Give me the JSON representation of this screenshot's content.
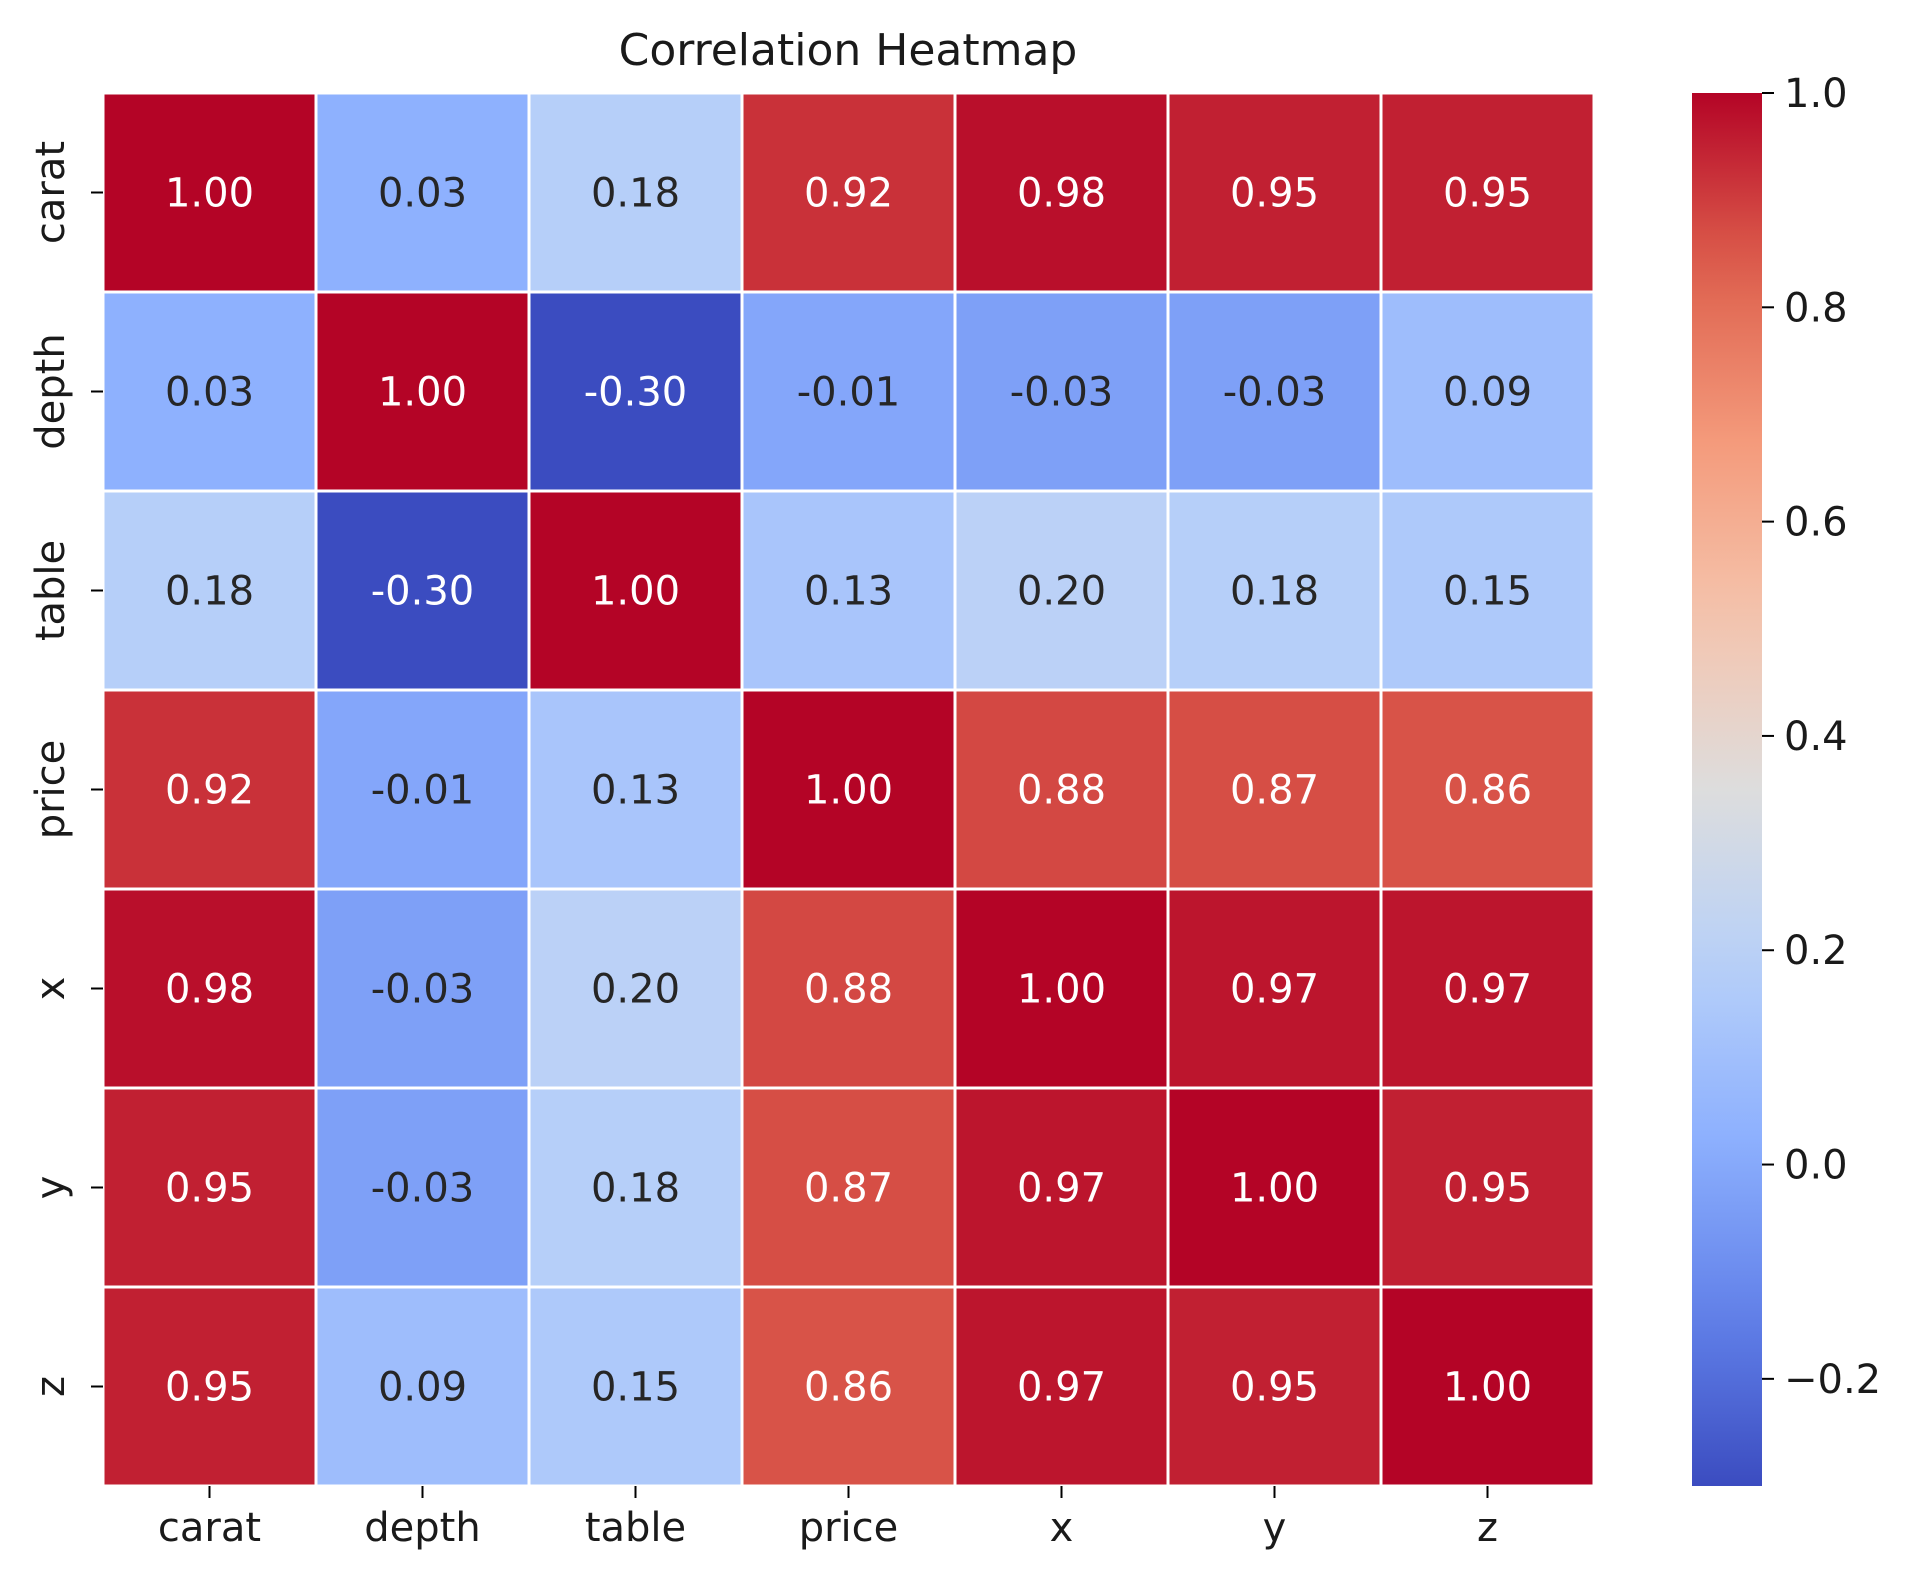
{
  "chart_data": {
    "type": "heatmap",
    "title": "Correlation Heatmap",
    "x_labels": [
      "carat",
      "depth",
      "table",
      "price",
      "x",
      "y",
      "z"
    ],
    "y_labels": [
      "carat",
      "depth",
      "table",
      "price",
      "x",
      "y",
      "z"
    ],
    "values": [
      [
        1.0,
        0.03,
        0.18,
        0.92,
        0.98,
        0.95,
        0.95
      ],
      [
        0.03,
        1.0,
        -0.3,
        -0.01,
        -0.03,
        -0.03,
        0.09
      ],
      [
        0.18,
        -0.3,
        1.0,
        0.13,
        0.2,
        0.18,
        0.15
      ],
      [
        0.92,
        -0.01,
        0.13,
        1.0,
        0.88,
        0.87,
        0.86
      ],
      [
        0.98,
        -0.03,
        0.2,
        0.88,
        1.0,
        0.97,
        0.97
      ],
      [
        0.95,
        -0.03,
        0.18,
        0.87,
        0.97,
        1.0,
        0.95
      ],
      [
        0.95,
        0.09,
        0.15,
        0.86,
        0.97,
        0.95,
        1.0
      ]
    ],
    "value_format": "0.00",
    "colormap": "coolwarm",
    "colorbar": {
      "range": [
        -0.3,
        1.0
      ],
      "ticks": [
        -0.2,
        0.0,
        0.2,
        0.4,
        0.6,
        0.8,
        1.0
      ],
      "tick_labels": [
        "−0.2",
        "0.0",
        "0.2",
        "0.4",
        "0.6",
        "0.8",
        "1.0"
      ]
    },
    "grid_line_color": "#ffffff",
    "annotation_colors": {
      "light": "#ffffff",
      "dark": "#262626"
    }
  }
}
